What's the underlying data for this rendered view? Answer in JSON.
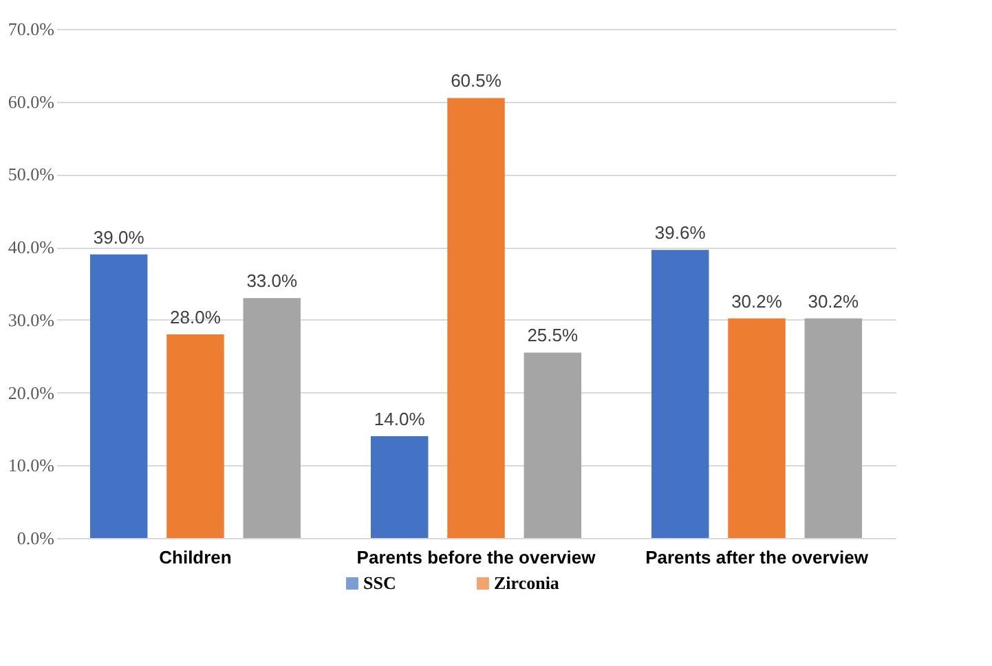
{
  "chart_data": {
    "type": "bar",
    "categories": [
      "Children",
      "Parents before the overview",
      "Parents after the overview"
    ],
    "series": [
      {
        "name": "SSC",
        "color": "#4472c4",
        "values": [
          39.0,
          14.0,
          39.6
        ],
        "value_labels": [
          "39.0%",
          "14.0%",
          "39.6%"
        ]
      },
      {
        "name": "Zirconia",
        "color": "#ed7d31",
        "values": [
          28.0,
          60.5,
          30.2
        ],
        "value_labels": [
          "28.0%",
          "60.5%",
          "30.2%"
        ]
      },
      {
        "color": "#a5a5a5",
        "values": [
          33.0,
          25.5,
          30.2
        ],
        "value_labels": [
          "33.0%",
          "25.5%",
          "30.2%"
        ]
      }
    ],
    "ylim": [
      0,
      70
    ],
    "yticks": [
      {
        "value": 0,
        "label": "0.0%"
      },
      {
        "value": 10,
        "label": "10.0%"
      },
      {
        "value": 20,
        "label": "20.0%"
      },
      {
        "value": 30,
        "label": "30.0%"
      },
      {
        "value": 40,
        "label": "40.0%"
      },
      {
        "value": 50,
        "label": "50.0%"
      },
      {
        "value": 60,
        "label": "60.0%"
      },
      {
        "value": 70,
        "label": "70.0%"
      }
    ],
    "grid": "y",
    "legend": "bottom"
  }
}
